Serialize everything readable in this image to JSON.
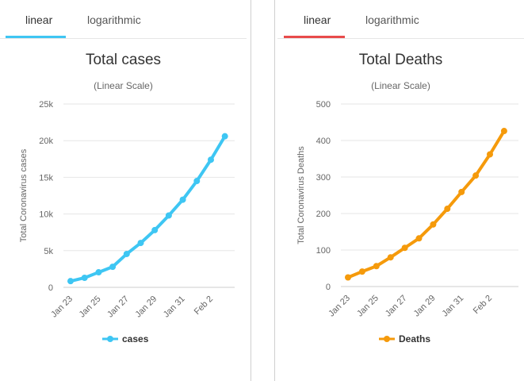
{
  "charts": [
    {
      "tabs": [
        {
          "label": "linear",
          "active": true
        },
        {
          "label": "logarithmic",
          "active": false
        }
      ],
      "active_tab_color": "#3ec6f3",
      "legend_label": "cases",
      "color": "#3ec6f3"
    },
    {
      "tabs": [
        {
          "label": "linear",
          "active": true
        },
        {
          "label": "logarithmic",
          "active": false
        }
      ],
      "active_tab_color": "#e84b4b",
      "legend_label": "Deaths",
      "color": "#f59a0b"
    }
  ],
  "chart_data": [
    {
      "type": "line",
      "title": "Total cases",
      "subtitle": "(Linear Scale)",
      "ylabel": "Total Coronavirus cases",
      "xlabel": "",
      "ylim": [
        0,
        25000
      ],
      "y_ticks": [
        0,
        5000,
        10000,
        15000,
        20000,
        25000
      ],
      "y_tick_labels": [
        "0",
        "5k",
        "10k",
        "15k",
        "20k",
        "25k"
      ],
      "categories": [
        "Jan 23",
        "Jan 24",
        "Jan 25",
        "Jan 26",
        "Jan 27",
        "Jan 28",
        "Jan 29",
        "Jan 30",
        "Jan 31",
        "Feb 1",
        "Feb 2",
        "Feb 3"
      ],
      "x_tick_labels": [
        "Jan 23",
        "Jan 25",
        "Jan 27",
        "Jan 29",
        "Jan 31",
        "Feb 2"
      ],
      "series": [
        {
          "name": "cases",
          "values": [
            850,
            1300,
            2050,
            2800,
            4550,
            6050,
            7800,
            9800,
            11950,
            14500,
            17400,
            20600
          ]
        }
      ],
      "grid": true,
      "legend_position": "bottom"
    },
    {
      "type": "line",
      "title": "Total Deaths",
      "subtitle": "(Linear Scale)",
      "ylabel": "Total Coronavirus Deaths",
      "xlabel": "",
      "ylim": [
        0,
        500
      ],
      "y_ticks": [
        0,
        100,
        200,
        300,
        400,
        500
      ],
      "y_tick_labels": [
        "0",
        "100",
        "200",
        "300",
        "400",
        "500"
      ],
      "categories": [
        "Jan 23",
        "Jan 24",
        "Jan 25",
        "Jan 26",
        "Jan 27",
        "Jan 28",
        "Jan 29",
        "Jan 30",
        "Jan 31",
        "Feb 1",
        "Feb 2",
        "Feb 3"
      ],
      "x_tick_labels": [
        "Jan 23",
        "Jan 25",
        "Jan 27",
        "Jan 29",
        "Jan 31",
        "Feb 2"
      ],
      "series": [
        {
          "name": "Deaths",
          "values": [
            25,
            41,
            56,
            80,
            106,
            132,
            170,
            213,
            259,
            304,
            362,
            426
          ]
        }
      ],
      "grid": true,
      "legend_position": "bottom"
    }
  ]
}
